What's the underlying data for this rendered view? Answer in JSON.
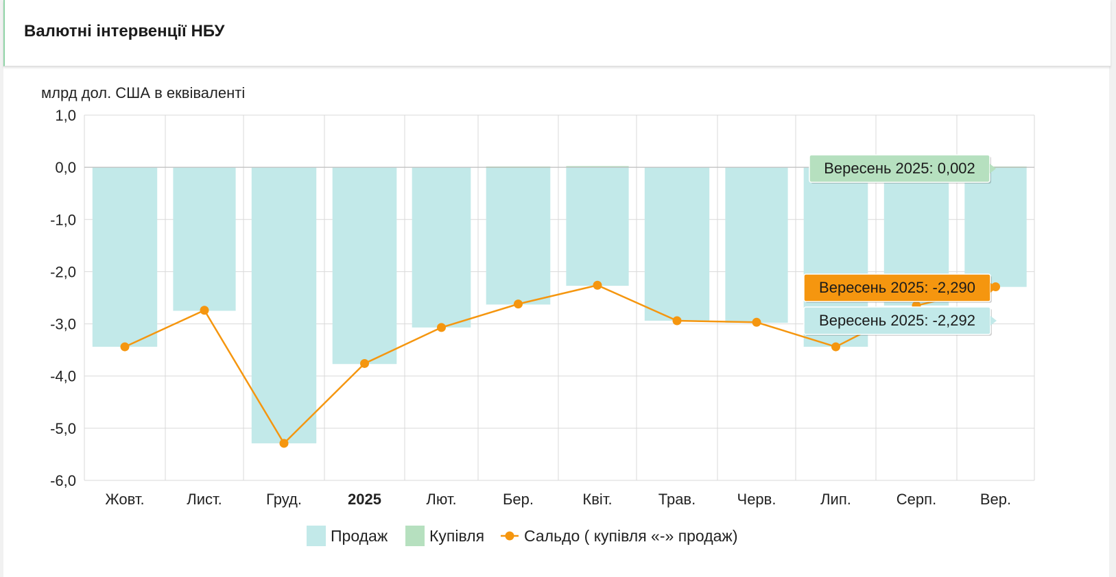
{
  "title": "Валютні інтервенції НБУ",
  "colors": {
    "sales": "#c2e9e9",
    "purchase": "#b6e0bf",
    "balance": "#f5960f",
    "grid": "#d9d9d9",
    "tooltip_purchase_bg": "#b6e0bf",
    "tooltip_balance_bg": "#f5960f",
    "tooltip_sales_bg": "#c2e9e9"
  },
  "chart_data": {
    "type": "bar",
    "unit_label": "млрд дол. США в еквіваленті",
    "categories": [
      "Жовт.",
      "Лист.",
      "Груд.",
      "2025",
      "Лют.",
      "Бер.",
      "Квіт.",
      "Трав.",
      "Черв.",
      "Лип.",
      "Серп.",
      "Вер."
    ],
    "bold_categories": [
      "2025"
    ],
    "ylim": [
      -6.0,
      1.0
    ],
    "yticks": [
      "1,0",
      "0,0",
      "-1,0",
      "-2,0",
      "-3,0",
      "-4,0",
      "-5,0",
      "-6,0"
    ],
    "grid": true,
    "series": [
      {
        "name": "Продаж",
        "kind": "bar",
        "values": [
          -3.44,
          -2.75,
          -5.29,
          -3.77,
          -3.07,
          -2.63,
          -2.27,
          -2.94,
          -2.98,
          -3.44,
          -2.65,
          -2.292
        ]
      },
      {
        "name": "Купівля",
        "kind": "bar",
        "values": [
          0.0,
          0.0,
          0.0,
          0.0,
          0.0,
          0.002,
          0.01,
          0.0,
          0.0,
          0.0,
          0.0,
          0.002
        ]
      },
      {
        "name": "Сальдо ( купівля «-» продаж)",
        "kind": "line",
        "values": [
          -3.44,
          -2.74,
          -5.29,
          -3.76,
          -3.07,
          -2.62,
          -2.26,
          -2.94,
          -2.97,
          -3.44,
          -2.65,
          -2.29
        ]
      }
    ],
    "legend_position": "bottom",
    "tooltips": [
      {
        "label": "Вересень 2025: 0,002",
        "series": "purchase"
      },
      {
        "label": "Вересень 2025: -2,290",
        "series": "balance"
      },
      {
        "label": "Вересень 2025: -2,292",
        "series": "sales"
      }
    ]
  }
}
